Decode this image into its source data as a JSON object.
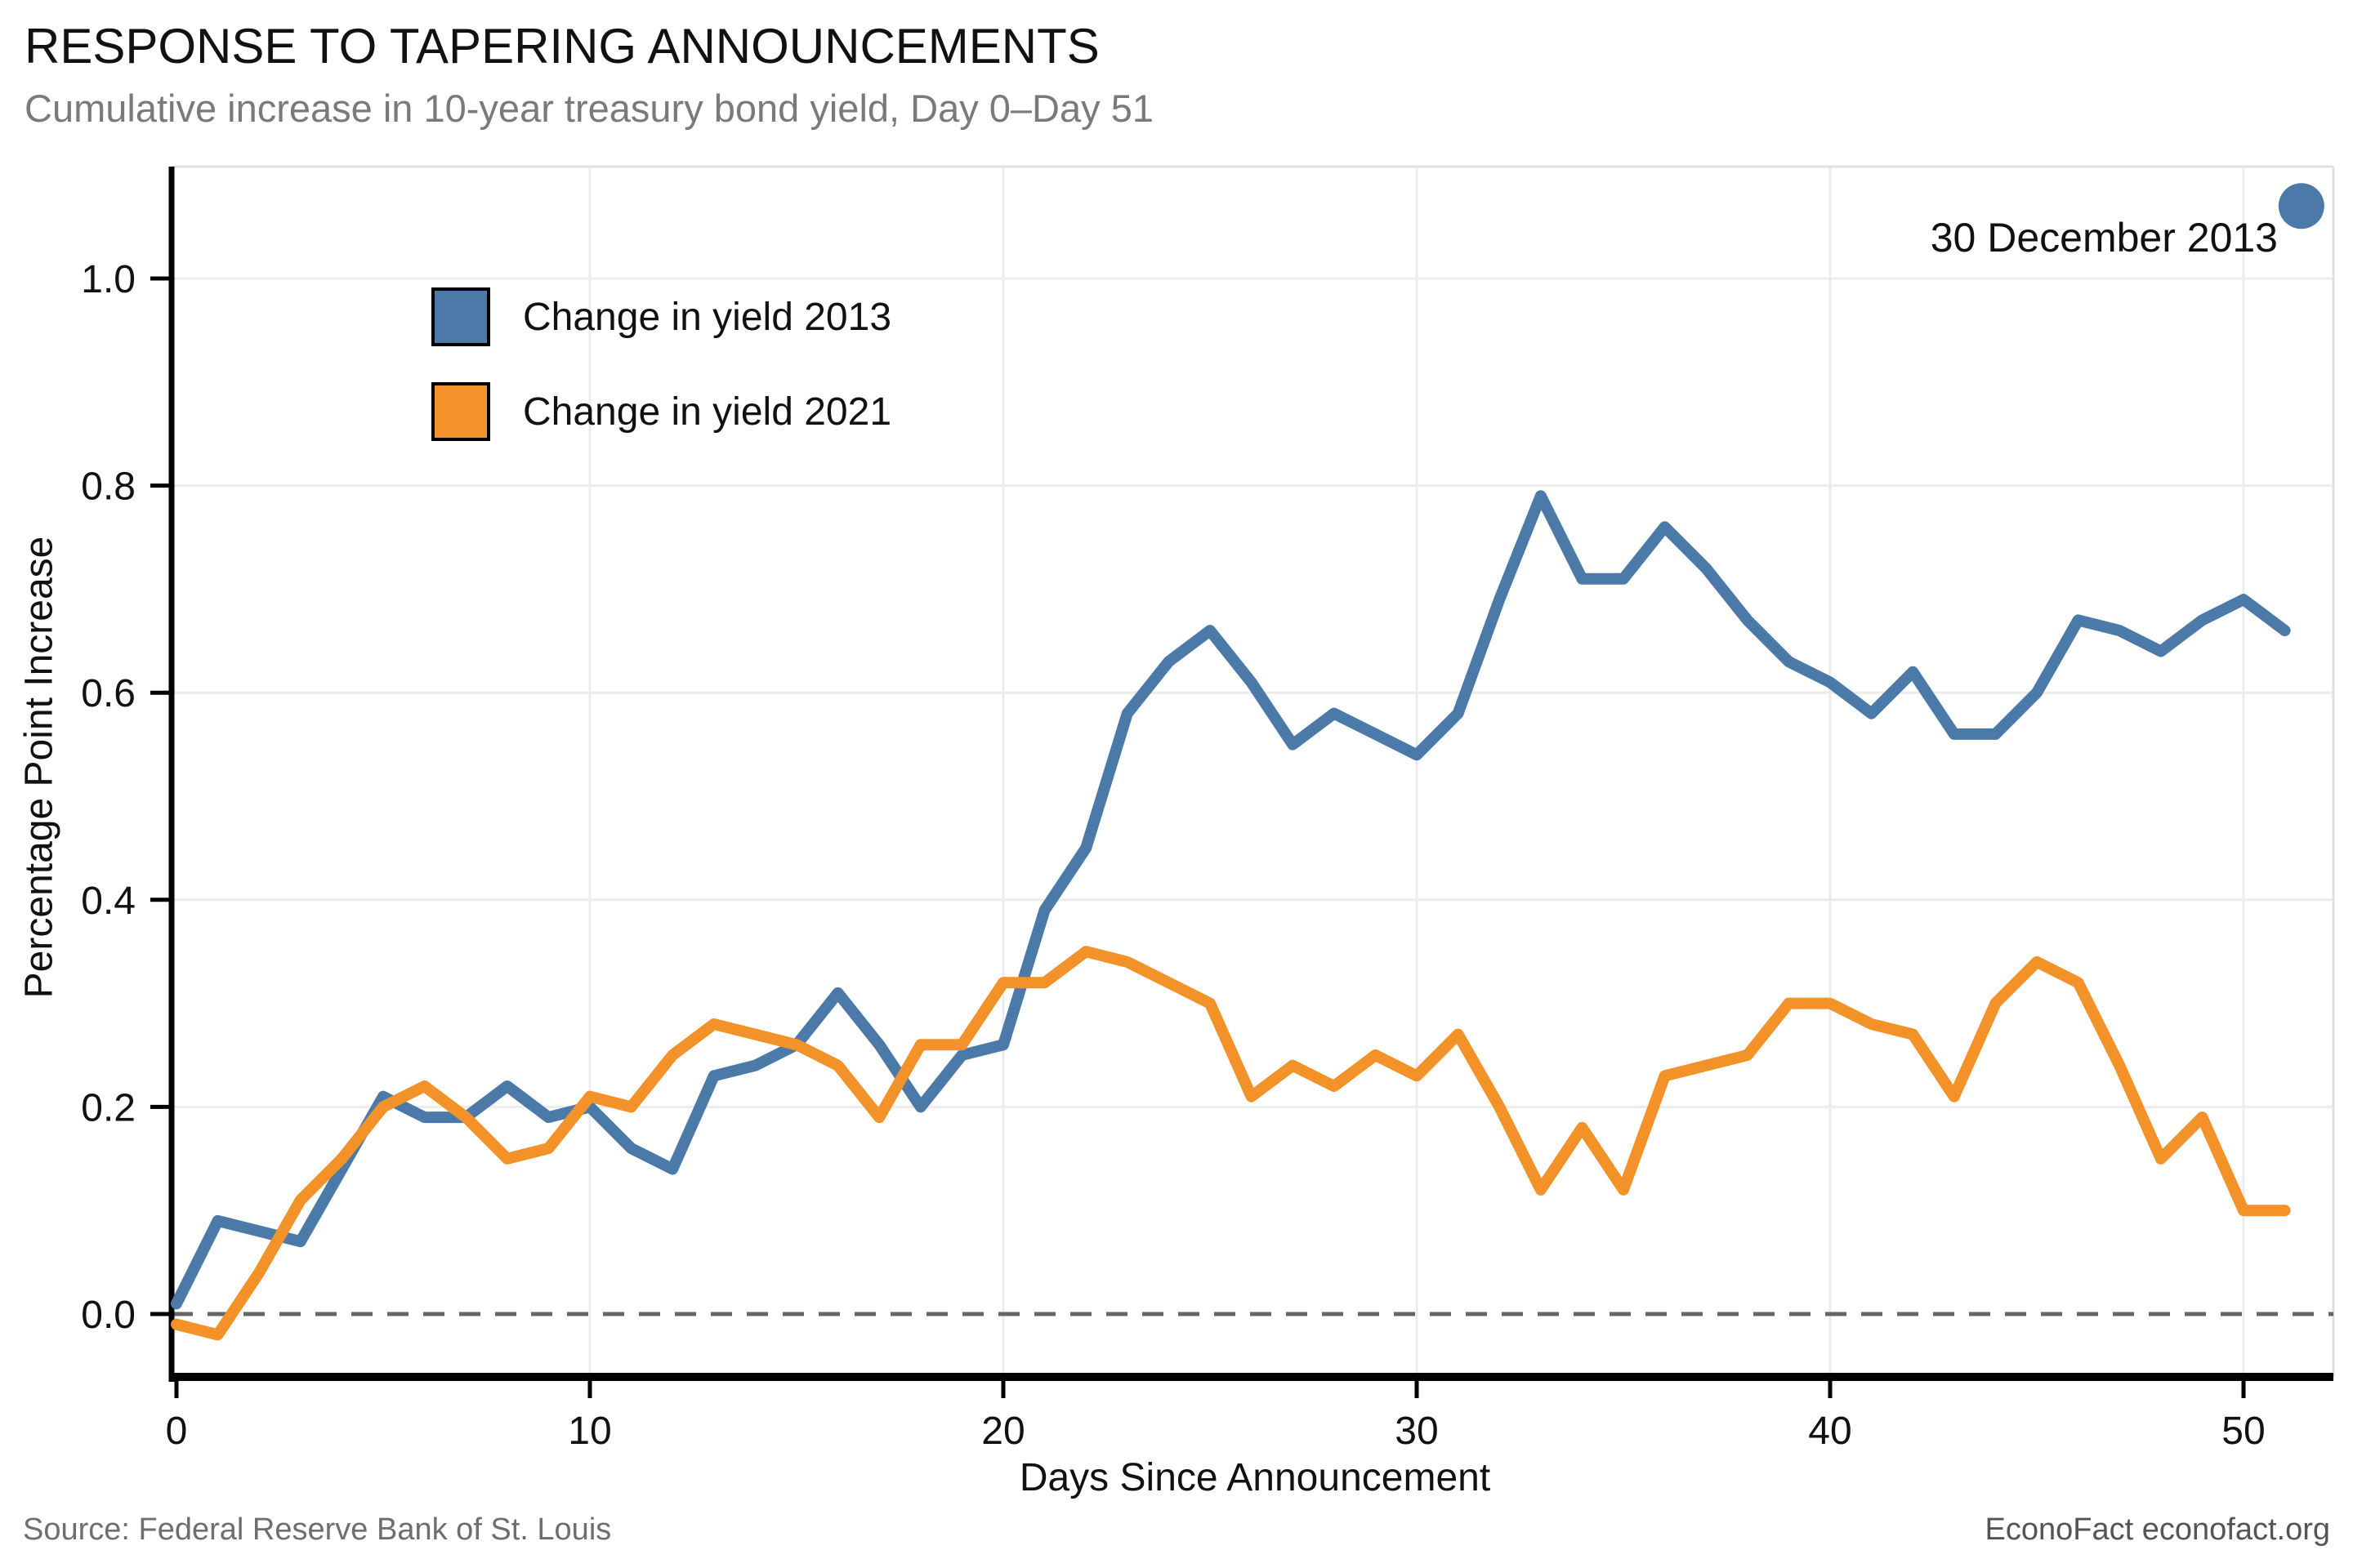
{
  "header": {
    "title": "RESPONSE TO TAPERING ANNOUNCEMENTS",
    "subtitle": "Cumulative increase in 10-year treasury bond yield, Day 0–Day 51"
  },
  "footer": {
    "source": "Source: Federal Reserve Bank of St. Louis",
    "brand": "EconoFact econofact.org"
  },
  "chart_data": {
    "type": "line",
    "title": "RESPONSE TO TAPERING ANNOUNCEMENTS",
    "subtitle": "Cumulative increase in 10-year treasury bond yield, Day 0–Day 51",
    "xlabel": "Days Since Announcement",
    "ylabel": "Percentage Point Increase",
    "xlim": [
      0,
      52.2
    ],
    "ylim": [
      -0.12,
      1.18
    ],
    "x_ticks": [
      0,
      10,
      20,
      30,
      40,
      50
    ],
    "x_tick_labels": [
      "0",
      "10",
      "20",
      "30",
      "40",
      "50"
    ],
    "y_ticks": [
      0.0,
      0.2,
      0.4,
      0.6,
      0.8,
      1.0
    ],
    "y_tick_labels": [
      "0.0",
      "0.2",
      "0.4",
      "0.6",
      "0.8",
      "1.0"
    ],
    "grid": true,
    "zero_line": {
      "style": "dashed",
      "color": "#666666",
      "y": 0.0
    },
    "legend_position": "upper-left",
    "x": [
      0,
      1,
      2,
      3,
      4,
      5,
      6,
      7,
      8,
      9,
      10,
      11,
      12,
      13,
      14,
      15,
      16,
      17,
      18,
      19,
      20,
      21,
      22,
      23,
      24,
      25,
      26,
      27,
      28,
      29,
      30,
      31,
      32,
      33,
      34,
      35,
      36,
      37,
      38,
      39,
      40,
      41,
      42,
      43,
      44,
      45,
      46,
      47,
      48,
      49,
      50,
      51
    ],
    "series": [
      {
        "name": "Change in yield 2013",
        "color": "#4B7AA9",
        "values": [
          0.01,
          0.09,
          0.08,
          0.07,
          0.14,
          0.21,
          0.19,
          0.19,
          0.22,
          0.19,
          0.2,
          0.16,
          0.14,
          0.23,
          0.24,
          0.26,
          0.31,
          0.26,
          0.2,
          0.25,
          0.26,
          0.39,
          0.45,
          0.58,
          0.63,
          0.66,
          0.61,
          0.55,
          0.58,
          0.56,
          0.54,
          0.58,
          0.69,
          0.79,
          0.71,
          0.71,
          0.76,
          0.72,
          0.67,
          0.63,
          0.61,
          0.58,
          0.62,
          0.56,
          0.56,
          0.6,
          0.67,
          0.66,
          0.64,
          0.67,
          0.69,
          0.66
        ]
      },
      {
        "name": "Change in yield 2021",
        "color": "#F29229",
        "values": [
          -0.01,
          -0.02,
          0.04,
          0.11,
          0.15,
          0.2,
          0.22,
          0.19,
          0.15,
          0.16,
          0.21,
          0.2,
          0.25,
          0.28,
          0.27,
          0.26,
          0.24,
          0.19,
          0.26,
          0.26,
          0.32,
          0.32,
          0.35,
          0.34,
          0.32,
          0.3,
          0.21,
          0.24,
          0.22,
          0.25,
          0.23,
          0.27,
          0.2,
          0.12,
          0.18,
          0.12,
          0.23,
          0.24,
          0.25,
          0.3,
          0.3,
          0.28,
          0.27,
          0.21,
          0.3,
          0.34,
          0.32,
          0.24,
          0.15,
          0.19,
          0.1,
          0.1
        ]
      }
    ],
    "annotation": {
      "label": "30 December 2013",
      "day": 51.4,
      "value": 1.07,
      "dot_color": "#4B7AA9"
    }
  }
}
